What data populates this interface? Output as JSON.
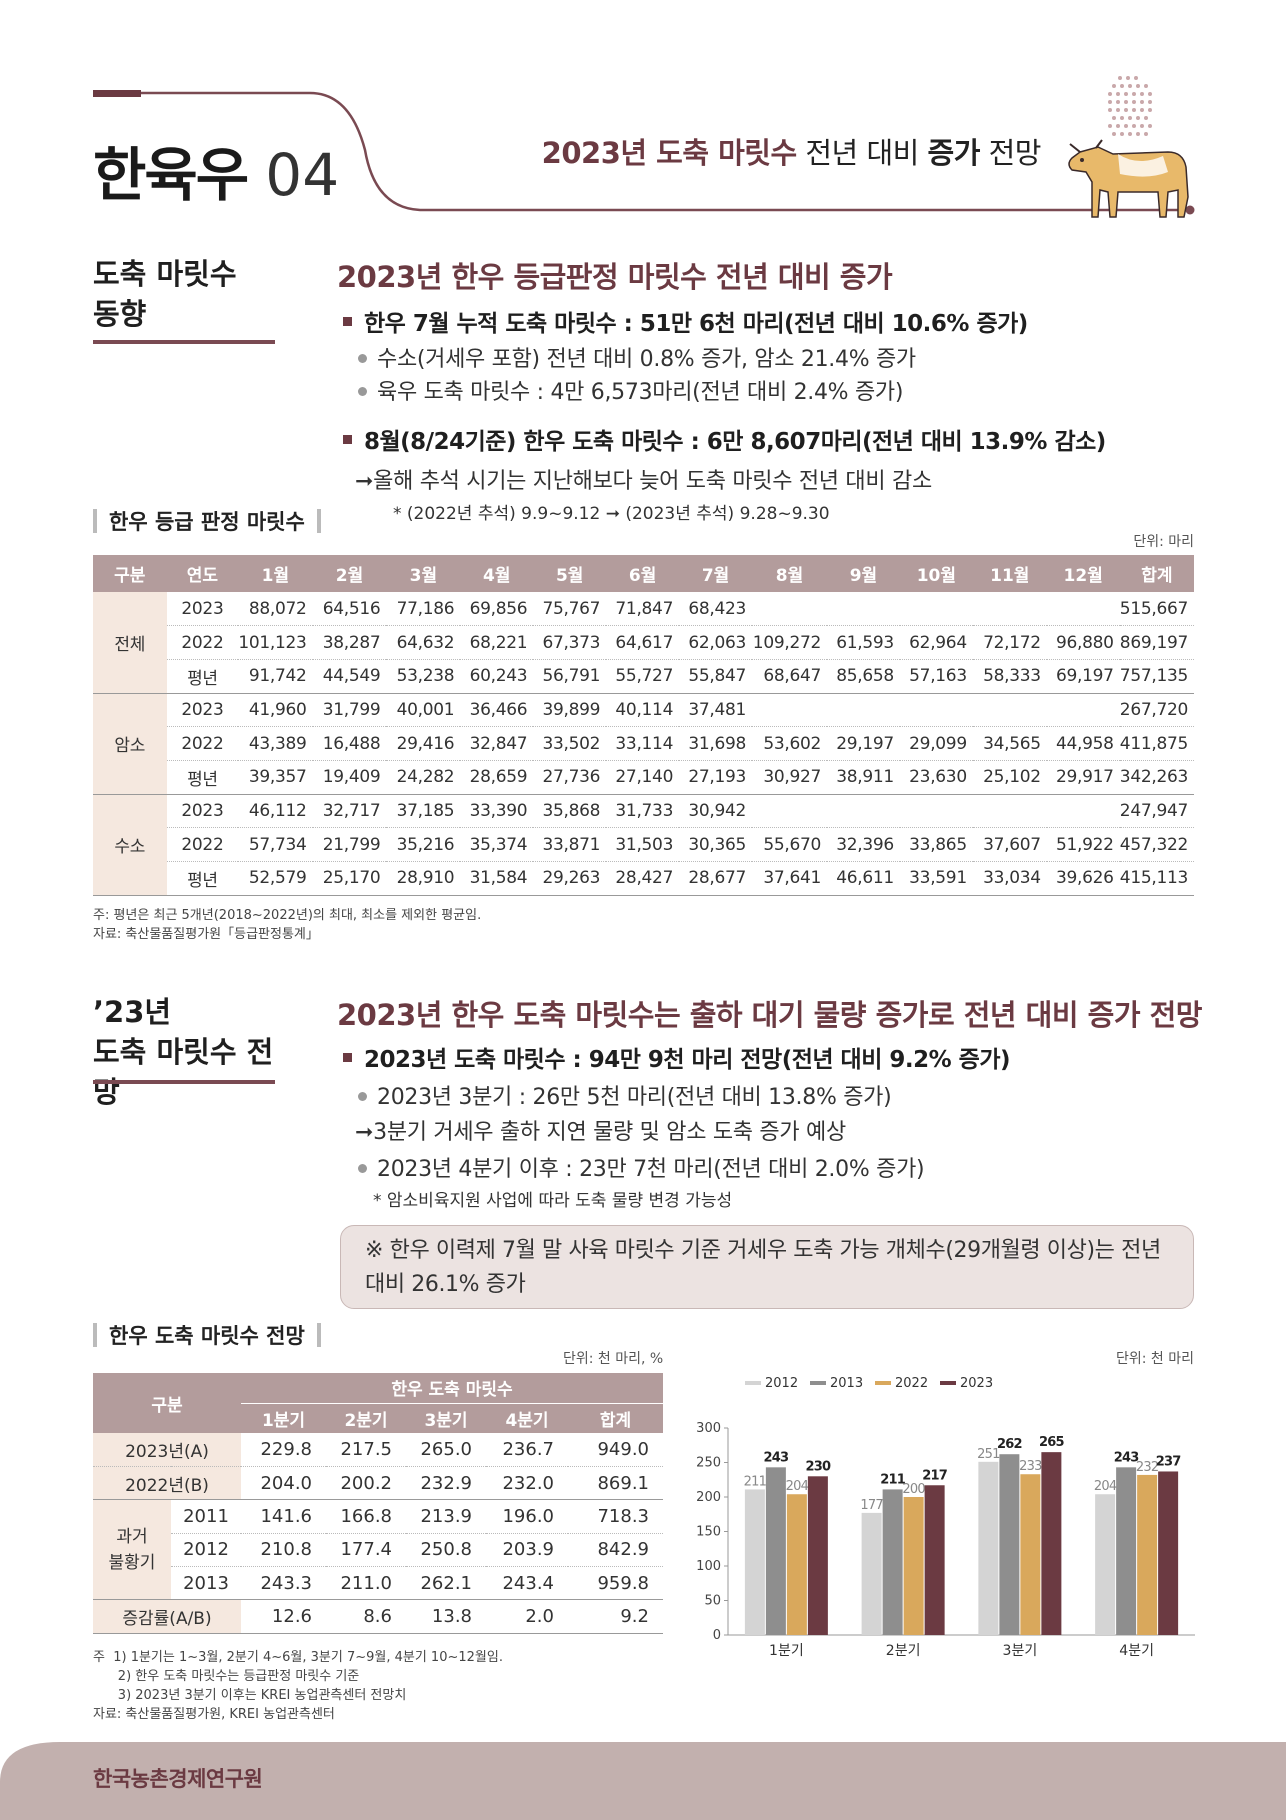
{
  "header": {
    "section": "한육우",
    "number": "04",
    "subtitle_acc": "2023년 도축 마릿수",
    "subtitle_mid": " 전년 대비 ",
    "subtitle_bold": "증가",
    "subtitle_end": " 전망"
  },
  "section1": {
    "left_title_1": "도축 마릿수",
    "left_title_2": "동향",
    "heading": "2023년 한우 등급판정 마릿수 전년 대비 증가",
    "b1": "한우 7월 누적 도축 마릿수 : 51만 6천 마리(전년 대비 10.6% 증가)",
    "b1_1": "수소(거세우 포함) 전년 대비 0.8% 증가, 암소 21.4% 증가",
    "b1_2": "육우 도축 마릿수 : 4만 6,573마리(전년 대비 2.4% 증가)",
    "b2": "8월(8/24기준) 한우 도축 마릿수 : 6만 8,607마리(전년 대비 13.9% 감소)",
    "b2_1": "올해 추석 시기는 지난해보다 늦어 도축 마릿수 전년 대비 감소",
    "b2_note": "* (2022년 추석) 9.9~9.12 ➞ (2023년 추석) 9.28~9.30",
    "table_label": "한우 등급 판정 마릿수",
    "unit": "단위: 마리",
    "columns": [
      "구분",
      "연도",
      "1월",
      "2월",
      "3월",
      "4월",
      "5월",
      "6월",
      "7월",
      "8월",
      "9월",
      "10월",
      "11월",
      "12월",
      "합계"
    ],
    "groups": [
      {
        "name": "전체",
        "rows": [
          {
            "year": "2023",
            "values": [
              "88,072",
              "64,516",
              "77,186",
              "69,856",
              "75,767",
              "71,847",
              "68,423",
              "",
              "",
              "",
              "",
              "",
              "515,667"
            ]
          },
          {
            "year": "2022",
            "values": [
              "101,123",
              "38,287",
              "64,632",
              "68,221",
              "67,373",
              "64,617",
              "62,063",
              "109,272",
              "61,593",
              "62,964",
              "72,172",
              "96,880",
              "869,197"
            ]
          },
          {
            "year": "평년",
            "values": [
              "91,742",
              "44,549",
              "53,238",
              "60,243",
              "56,791",
              "55,727",
              "55,847",
              "68,647",
              "85,658",
              "57,163",
              "58,333",
              "69,197",
              "757,135"
            ]
          }
        ]
      },
      {
        "name": "암소",
        "rows": [
          {
            "year": "2023",
            "values": [
              "41,960",
              "31,799",
              "40,001",
              "36,466",
              "39,899",
              "40,114",
              "37,481",
              "",
              "",
              "",
              "",
              "",
              "267,720"
            ]
          },
          {
            "year": "2022",
            "values": [
              "43,389",
              "16,488",
              "29,416",
              "32,847",
              "33,502",
              "33,114",
              "31,698",
              "53,602",
              "29,197",
              "29,099",
              "34,565",
              "44,958",
              "411,875"
            ]
          },
          {
            "year": "평년",
            "values": [
              "39,357",
              "19,409",
              "24,282",
              "28,659",
              "27,736",
              "27,140",
              "27,193",
              "30,927",
              "38,911",
              "23,630",
              "25,102",
              "29,917",
              "342,263"
            ]
          }
        ]
      },
      {
        "name": "수소",
        "rows": [
          {
            "year": "2023",
            "values": [
              "46,112",
              "32,717",
              "37,185",
              "33,390",
              "35,868",
              "31,733",
              "30,942",
              "",
              "",
              "",
              "",
              "",
              "247,947"
            ]
          },
          {
            "year": "2022",
            "values": [
              "57,734",
              "21,799",
              "35,216",
              "35,374",
              "33,871",
              "31,503",
              "30,365",
              "55,670",
              "32,396",
              "33,865",
              "37,607",
              "51,922",
              "457,322"
            ]
          },
          {
            "year": "평년",
            "values": [
              "52,579",
              "25,170",
              "28,910",
              "31,584",
              "29,263",
              "28,427",
              "28,677",
              "37,641",
              "46,611",
              "33,591",
              "33,034",
              "39,626",
              "415,113"
            ]
          }
        ]
      }
    ],
    "note1": "주: 평년은 최근 5개년(2018~2022년)의 최대, 최소를 제외한 평균임.",
    "note2": "자료: 축산물품질평가원「등급판정통계」"
  },
  "section2": {
    "left_title_1": "’23년",
    "left_title_2": "도축 마릿수 전망",
    "heading": "2023년 한우 도축 마릿수는 출하 대기 물량 증가로 전년 대비 증가 전망",
    "b1": "2023년 도축 마릿수 : 94만 9천 마리 전망(전년 대비 9.2% 증가)",
    "b1_1": "2023년 3분기 : 26만 5천 마리(전년 대비 13.8% 증가)",
    "b1_arrow": "3분기 거세우 출하 지연 물량 및 암소 도축 증가 예상",
    "b1_2": "2023년 4분기 이후 : 23만 7천 마리(전년 대비 2.0% 증가)",
    "b1_note": "* 암소비육지원 사업에 따라 도축 물량 변경 가능성",
    "callout": "※ 한우 이력제 7월 말 사육 마릿수 기준 거세우 도축 가능 개체수(29개월령 이상)는 전년 대비 26.1% 증가",
    "table_label": "한우 도축 마릿수 전망",
    "unit_table": "단위: 천 마리, %",
    "unit_chart": "단위: 천 마리",
    "head_group": "구분",
    "head_span": "한우 도축 마릿수",
    "head_cols": [
      "1분기",
      "2분기",
      "3분기",
      "4분기",
      "합계"
    ],
    "rows": [
      {
        "label": "2023년(A)",
        "values": [
          "229.8",
          "217.5",
          "265.0",
          "236.7",
          "949.0"
        ]
      },
      {
        "label": "2022년(B)",
        "values": [
          "204.0",
          "200.2",
          "232.9",
          "232.0",
          "869.1"
        ]
      }
    ],
    "past_label_1": "과거",
    "past_label_2": "불황기",
    "past_rows": [
      {
        "label": "2011",
        "values": [
          "141.6",
          "166.8",
          "213.9",
          "196.0",
          "718.3"
        ]
      },
      {
        "label": "2012",
        "values": [
          "210.8",
          "177.4",
          "250.8",
          "203.9",
          "842.9"
        ]
      },
      {
        "label": "2013",
        "values": [
          "243.3",
          "211.0",
          "262.1",
          "243.4",
          "959.8"
        ]
      }
    ],
    "rate_row": {
      "label": "증감률(A/B)",
      "values": [
        "12.6",
        "8.6",
        "13.8",
        "2.0",
        "9.2"
      ]
    },
    "notes": [
      "주  1) 1분기는 1~3월, 2분기 4~6월, 3분기 7~9월, 4분기 10~12월임.",
      "      2) 한우 도축 마릿수는 등급판정 마릿수 기준",
      "      3) 2023년 3분기 이후는 KREI 농업관측센터 전망치",
      "자료: 축산물품질평가원, KREI 농업관측센터"
    ]
  },
  "chart_data": {
    "type": "bar",
    "categories": [
      "1분기",
      "2분기",
      "3분기",
      "4분기"
    ],
    "series": [
      {
        "name": "2012",
        "values": [
          211,
          177,
          251,
          204
        ],
        "color": "#d4d4d4"
      },
      {
        "name": "2013",
        "values": [
          243,
          211,
          262,
          243
        ],
        "color": "#8e8e8e"
      },
      {
        "name": "2022",
        "values": [
          204,
          200,
          233,
          232
        ],
        "color": "#d9a85c"
      },
      {
        "name": "2023",
        "values": [
          230,
          217,
          265,
          237
        ],
        "color": "#6b3a42"
      }
    ],
    "ylim": [
      0,
      300
    ],
    "yticks": [
      0,
      50,
      100,
      150,
      200,
      250,
      300
    ],
    "legend": "top"
  },
  "footer": {
    "org": "한국농촌경제연구원"
  },
  "colors": {
    "accent": "#6b3a42",
    "table_header": "#b39c9c",
    "table_group": "#f5e8df",
    "footer_band": "#c2b0ae"
  }
}
